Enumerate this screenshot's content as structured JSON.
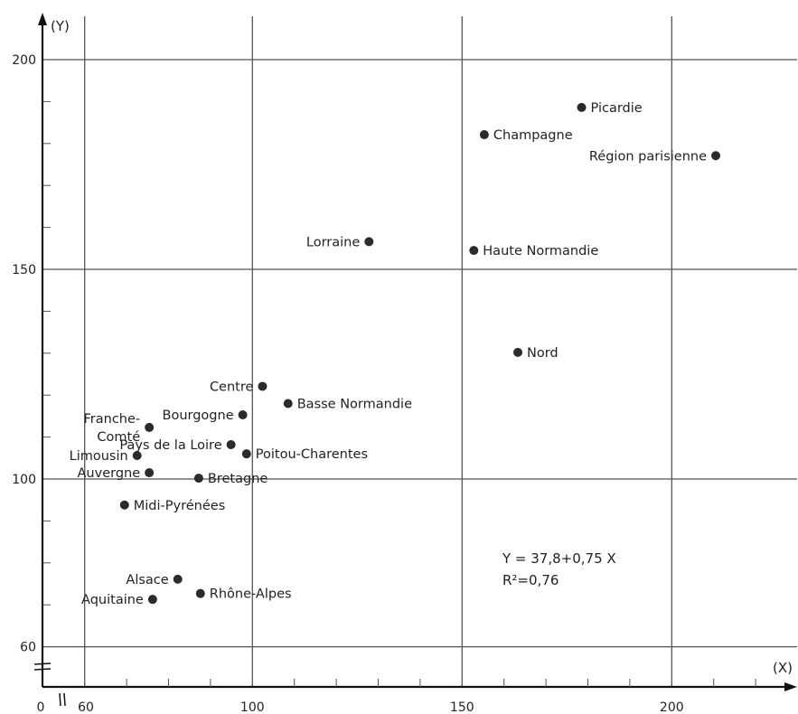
{
  "chart_data": {
    "type": "scatter",
    "title": "",
    "xlabel": "(X)",
    "ylabel": "(Y)",
    "xlim": [
      52,
      230
    ],
    "ylim": [
      54,
      210
    ],
    "x_ticks": [
      {
        "value": 0,
        "label": "0"
      },
      {
        "value": 60,
        "label": "60"
      },
      {
        "value": 100,
        "label": "100"
      },
      {
        "value": 150,
        "label": "150"
      },
      {
        "value": 200,
        "label": "200"
      }
    ],
    "y_ticks": [
      {
        "value": 60,
        "label": "60"
      },
      {
        "value": 100,
        "label": "100"
      },
      {
        "value": 150,
        "label": "150"
      },
      {
        "value": 200,
        "label": "200"
      }
    ],
    "grid": true,
    "points": [
      {
        "label": "Picardie",
        "x": 178.5,
        "y": 188.6,
        "label_side": "right"
      },
      {
        "label": "Champagne",
        "x": 155.3,
        "y": 182.1,
        "label_side": "right"
      },
      {
        "label": "Région parisienne",
        "x": 210.5,
        "y": 177.1,
        "label_side": "left"
      },
      {
        "label": "Lorraine",
        "x": 127.8,
        "y": 156.6,
        "label_side": "left"
      },
      {
        "label": "Haute Normandie",
        "x": 152.8,
        "y": 154.5,
        "label_side": "right"
      },
      {
        "label": "Nord",
        "x": 163.3,
        "y": 130.2,
        "label_side": "right"
      },
      {
        "label": "Centre",
        "x": 102.4,
        "y": 122.1,
        "label_side": "left"
      },
      {
        "label": "Basse Normandie",
        "x": 108.5,
        "y": 118.0,
        "label_side": "right"
      },
      {
        "label": "Franche-\nComté",
        "x": 75.4,
        "y": 112.3,
        "label_side": "left"
      },
      {
        "label": "Bourgogne",
        "x": 97.7,
        "y": 115.3,
        "label_side": "left"
      },
      {
        "label": "Pays de la Loire",
        "x": 94.9,
        "y": 108.2,
        "label_side": "left"
      },
      {
        "label": "Poitou-Charentes",
        "x": 98.6,
        "y": 106.0,
        "label_side": "right"
      },
      {
        "label": "Limousin",
        "x": 72.5,
        "y": 105.6,
        "label_side": "left"
      },
      {
        "label": "Auvergne",
        "x": 75.4,
        "y": 101.5,
        "label_side": "left"
      },
      {
        "label": "Bretagne",
        "x": 87.2,
        "y": 100.2,
        "label_side": "right"
      },
      {
        "label": "Midi-Pyrénées",
        "x": 69.5,
        "y": 93.8,
        "label_side": "right"
      },
      {
        "label": "Alsace",
        "x": 82.2,
        "y": 76.1,
        "label_side": "left"
      },
      {
        "label": "Rhône-Alpes",
        "x": 87.6,
        "y": 72.7,
        "label_side": "right"
      },
      {
        "label": "Aquitaine",
        "x": 76.2,
        "y": 71.3,
        "label_side": "left"
      }
    ],
    "annotations": [
      "Y = 37,8+0,75 X",
      "R²=0,76"
    ],
    "legend": "none",
    "axis_break": true
  },
  "colors": {
    "background": "#ffffff",
    "grid": "#555555",
    "axis": "#111111",
    "point": "#2b2b2b",
    "text": "#222222"
  }
}
